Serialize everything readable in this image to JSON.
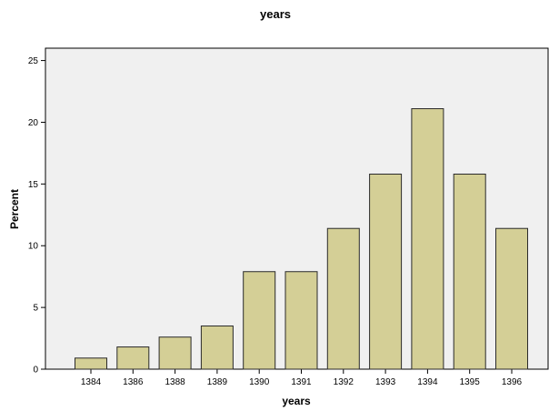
{
  "chart_data": {
    "type": "bar",
    "title": "years",
    "xlabel": "years",
    "ylabel": "Percent",
    "categories": [
      "1384",
      "1386",
      "1388",
      "1389",
      "1390",
      "1391",
      "1392",
      "1393",
      "1394",
      "1395",
      "1396"
    ],
    "values": [
      0.9,
      1.8,
      2.6,
      3.5,
      7.9,
      7.9,
      11.4,
      15.8,
      21.1,
      15.8,
      11.4
    ],
    "ylim": [
      0,
      26
    ],
    "yticks": [
      "0",
      "5",
      "10",
      "15",
      "20",
      "25"
    ],
    "grid": false,
    "legend": "none",
    "colors": {
      "bar_fill": "#d4cf96",
      "bar_stroke": "#2a2a2a",
      "plot_background": "#f0f0f0"
    }
  }
}
